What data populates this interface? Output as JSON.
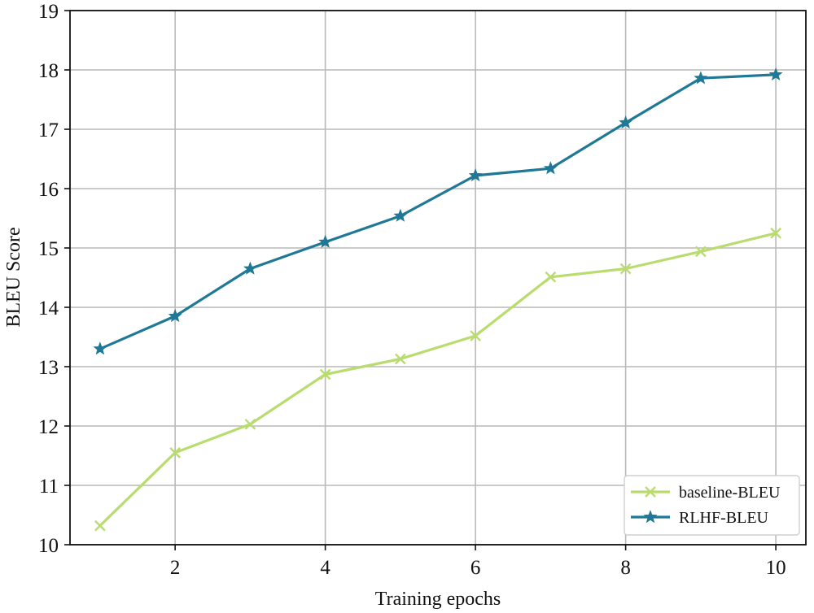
{
  "chart_data": {
    "type": "line",
    "title": "",
    "xlabel": "Training epochs",
    "ylabel": "BLEU Score",
    "x": [
      1,
      2,
      3,
      4,
      5,
      6,
      7,
      8,
      9,
      10
    ],
    "xlim": [
      0.6,
      10.4
    ],
    "ylim": [
      10,
      19
    ],
    "xticks": [
      2,
      4,
      6,
      8,
      10
    ],
    "yticks": [
      10,
      11,
      12,
      13,
      14,
      15,
      16,
      17,
      18,
      19
    ],
    "grid": true,
    "legend_position": "lower-right",
    "series": [
      {
        "name": "baseline-BLEU",
        "color": "#b9dc6e",
        "marker": "x",
        "values": [
          10.32,
          11.55,
          12.03,
          12.87,
          13.13,
          13.52,
          14.51,
          14.65,
          14.94,
          15.25
        ]
      },
      {
        "name": "RLHF-BLEU",
        "color": "#1f7896",
        "marker": "star",
        "values": [
          13.3,
          13.85,
          14.65,
          15.1,
          15.54,
          16.22,
          16.34,
          17.11,
          17.86,
          17.92
        ]
      }
    ]
  }
}
